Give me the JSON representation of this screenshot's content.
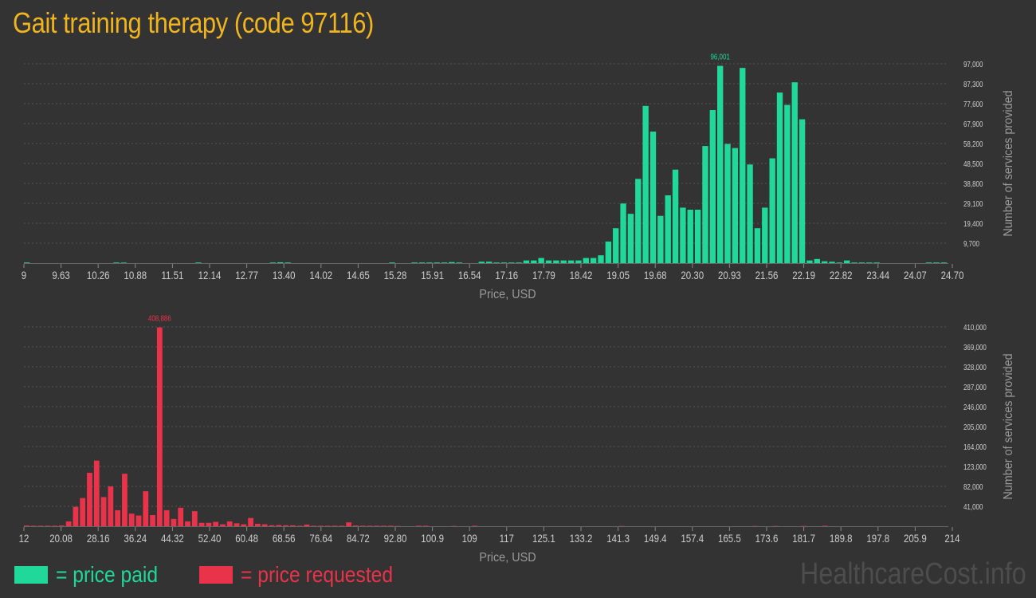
{
  "page_title": "Gait training therapy (code 97116)",
  "watermark": "HealthcareCost.info",
  "legend": {
    "paid": {
      "label": "= price paid",
      "color": "#1fd89a"
    },
    "requested": {
      "label": "= price requested",
      "color": "#e8334a"
    }
  },
  "colors": {
    "background": "#333333",
    "axis_text": "#cccccc",
    "grid": "#555555",
    "axis_title": "#999999"
  },
  "chart_data": [
    {
      "type": "bar",
      "id": "paid",
      "color": "#1fd89a",
      "xlabel": "Price, USD",
      "ylabel": "Number of services provided",
      "x_ticks": [
        "9",
        "9.63",
        "10.26",
        "10.88",
        "11.51",
        "12.14",
        "12.77",
        "13.40",
        "14.02",
        "14.65",
        "15.28",
        "15.91",
        "16.54",
        "17.16",
        "17.79",
        "18.42",
        "19.05",
        "19.68",
        "20.30",
        "20.93",
        "21.56",
        "22.19",
        "22.82",
        "23.44",
        "24.07",
        "24.70"
      ],
      "y_ticks": [
        "9,700",
        "19,400",
        "29,100",
        "38,800",
        "48,500",
        "58,200",
        "67,900",
        "77,600",
        "87,300",
        "97,000"
      ],
      "ylim": [
        0,
        97000
      ],
      "peak_label": "96,001",
      "values": [
        300,
        0,
        0,
        0,
        0,
        0,
        0,
        0,
        0,
        0,
        0,
        0,
        300,
        250,
        0,
        0,
        0,
        0,
        0,
        0,
        0,
        0,
        0,
        300,
        0,
        0,
        0,
        0,
        0,
        0,
        0,
        0,
        0,
        300,
        400,
        300,
        0,
        0,
        0,
        0,
        0,
        0,
        0,
        0,
        0,
        0,
        0,
        0,
        0,
        300,
        0,
        0,
        300,
        300,
        300,
        300,
        300,
        500,
        300,
        0,
        0,
        700,
        700,
        300,
        300,
        300,
        300,
        1300,
        1300,
        2500,
        1300,
        1300,
        1300,
        1300,
        1300,
        2500,
        2500,
        3800,
        10500,
        17000,
        29000,
        24000,
        41000,
        76500,
        64000,
        23000,
        33000,
        45500,
        27000,
        26000,
        26000,
        57000,
        74500,
        96001,
        58000,
        56000,
        95000,
        48000,
        17000,
        27000,
        51000,
        83000,
        77000,
        88000,
        70000,
        1300,
        2000,
        900,
        700,
        300,
        1300,
        300,
        300,
        300,
        300,
        0,
        0,
        0,
        0,
        0,
        0,
        300,
        300,
        300
      ]
    },
    {
      "type": "bar",
      "id": "requested",
      "color": "#e8334a",
      "xlabel": "Price, USD",
      "ylabel": "Number of services provided",
      "x_ticks": [
        "12",
        "20.08",
        "28.16",
        "36.24",
        "44.32",
        "52.40",
        "60.48",
        "68.56",
        "76.64",
        "84.72",
        "92.80",
        "100.9",
        "109",
        "117",
        "125.1",
        "133.2",
        "141.3",
        "149.4",
        "157.4",
        "165.5",
        "173.6",
        "181.7",
        "189.8",
        "197.8",
        "205.9",
        "214"
      ],
      "y_ticks": [
        "41,000",
        "82,000",
        "123,000",
        "164,000",
        "205,000",
        "246,000",
        "287,000",
        "328,000",
        "369,000",
        "410,000"
      ],
      "ylim": [
        0,
        410000
      ],
      "peak_label": "408,886",
      "values": [
        1500,
        1000,
        1000,
        1000,
        1000,
        1500,
        10000,
        40000,
        58000,
        110000,
        135000,
        60000,
        82000,
        33000,
        108000,
        26000,
        22000,
        72000,
        23000,
        408886,
        33000,
        15000,
        38000,
        10000,
        31000,
        7000,
        7000,
        9000,
        4000,
        10000,
        6000,
        4000,
        17000,
        5000,
        4000,
        2000,
        2500,
        2000,
        2000,
        1000,
        3500,
        1000,
        1000,
        1000,
        1000,
        1000,
        8000,
        1500,
        1000,
        1000,
        1000,
        1000,
        1000,
        500,
        0,
        0,
        1000,
        1000,
        0,
        0,
        0,
        500,
        0,
        0,
        1000,
        0,
        0,
        0,
        0,
        0,
        0,
        0,
        0,
        0,
        0,
        0,
        0,
        0,
        0,
        0,
        0,
        0,
        0,
        0,
        0,
        500,
        0,
        0,
        0,
        0,
        0,
        0,
        0,
        0,
        0,
        0,
        0,
        0,
        0,
        0,
        0,
        0,
        0,
        0,
        500,
        0,
        0,
        500,
        0,
        0,
        0,
        500,
        0,
        0,
        1000,
        0,
        0,
        0,
        0,
        0,
        0,
        0,
        0,
        0,
        0,
        0,
        0,
        0,
        0,
        0,
        0,
        0
      ]
    }
  ]
}
